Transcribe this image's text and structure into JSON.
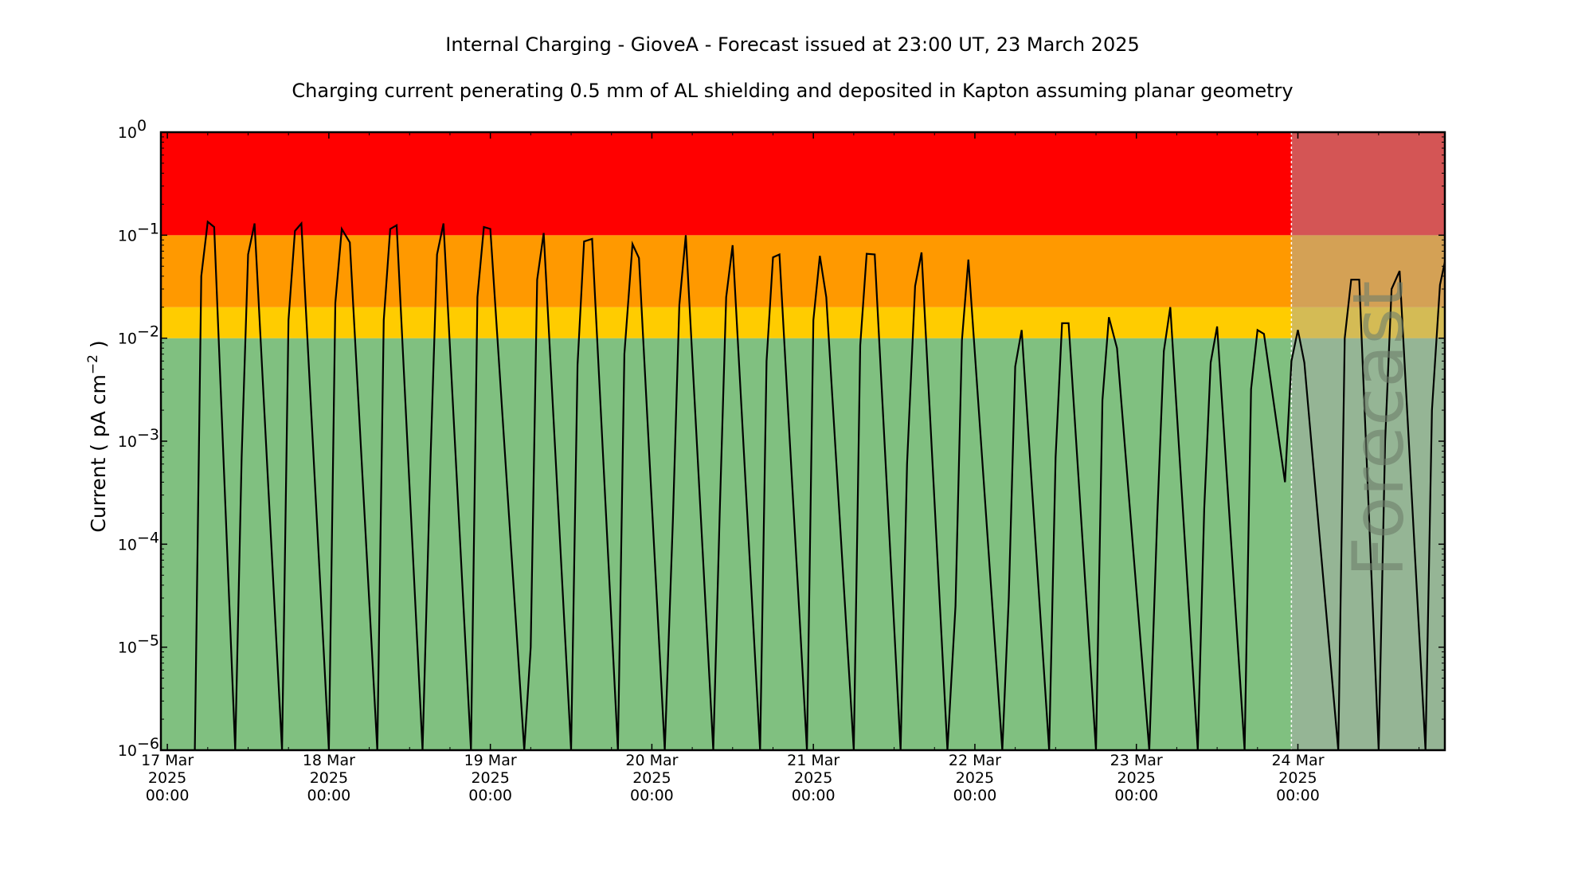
{
  "chart_data": {
    "type": "line",
    "title": "Internal Charging - GioveA - Forecast issued at 23:00 UT, 23 March 2025",
    "subtitle": "Charging current penerating 0.5 mm of AL shielding and deposited in Kapton assuming planar geometry",
    "ylabel": "Current ( pA cm",
    "ylabel_sup": "−2",
    "ylabel_end": " )",
    "yscale": "log",
    "ylim_exp": [
      -6,
      0
    ],
    "ytick_labels": [
      {
        "base": "10",
        "exp": "−6"
      },
      {
        "base": "10",
        "exp": "−5"
      },
      {
        "base": "10",
        "exp": "−4"
      },
      {
        "base": "10",
        "exp": "−3"
      },
      {
        "base": "10",
        "exp": "−2"
      },
      {
        "base": "10",
        "exp": "−1"
      },
      {
        "base": "10",
        "exp": "0"
      }
    ],
    "xlim_days": [
      16.96,
      24.91
    ],
    "xtick_labels": [
      {
        "day": 17,
        "lines": [
          "17 Mar",
          "2025",
          "00:00"
        ]
      },
      {
        "day": 18,
        "lines": [
          "18 Mar",
          "2025",
          "00:00"
        ]
      },
      {
        "day": 19,
        "lines": [
          "19 Mar",
          "2025",
          "00:00"
        ]
      },
      {
        "day": 20,
        "lines": [
          "20 Mar",
          "2025",
          "00:00"
        ]
      },
      {
        "day": 21,
        "lines": [
          "21 Mar",
          "2025",
          "00:00"
        ]
      },
      {
        "day": 22,
        "lines": [
          "22 Mar",
          "2025",
          "00:00"
        ]
      },
      {
        "day": 23,
        "lines": [
          "23 Mar",
          "2025",
          "00:00"
        ]
      },
      {
        "day": 24,
        "lines": [
          "24 Mar",
          "2025",
          "00:00"
        ]
      }
    ],
    "bands": [
      {
        "from_exp": -6,
        "to_exp": -2,
        "color": "#80c080"
      },
      {
        "from_exp": -2,
        "to_exp": -1.699,
        "color": "#ffcc00"
      },
      {
        "from_exp": -1.699,
        "to_exp": -1,
        "color": "#ff9900"
      },
      {
        "from_exp": -1,
        "to_exp": 0,
        "color": "#ff0000"
      }
    ],
    "forecast_start_day": 23.96,
    "forecast_overlay_color": "#a9a9a9",
    "forecast_label": "Forecast",
    "line_color": "#000000",
    "series": [
      {
        "name": "",
        "x": [
          17.17,
          17.21,
          17.25,
          17.29,
          17.42,
          17.46,
          17.5,
          17.54,
          17.71,
          17.75,
          17.79,
          17.83,
          18.0,
          18.04,
          18.08,
          18.13,
          18.3,
          18.34,
          18.38,
          18.42,
          18.58,
          18.63,
          18.67,
          18.71,
          18.88,
          18.92,
          18.96,
          19.0,
          19.21,
          19.25,
          19.29,
          19.33,
          19.5,
          19.54,
          19.58,
          19.63,
          19.79,
          19.83,
          19.88,
          19.92,
          20.08,
          20.13,
          20.17,
          20.21,
          20.38,
          20.42,
          20.46,
          20.5,
          20.67,
          20.71,
          20.75,
          20.79,
          20.96,
          21.0,
          21.04,
          21.08,
          21.25,
          21.29,
          21.33,
          21.38,
          21.54,
          21.58,
          21.63,
          21.67,
          21.83,
          21.88,
          21.92,
          21.96,
          22.17,
          22.21,
          22.25,
          22.29,
          22.46,
          22.5,
          22.54,
          22.58,
          22.75,
          22.79,
          22.83,
          22.88,
          23.08,
          23.13,
          23.17,
          23.21,
          23.38,
          23.42,
          23.46,
          23.5,
          23.67,
          23.71,
          23.75,
          23.79,
          23.92,
          23.96,
          24.0,
          24.04,
          24.25,
          24.29,
          24.33,
          24.38,
          24.5,
          24.54,
          24.58,
          24.63,
          24.79,
          24.83,
          24.88,
          24.91
        ],
        "y": [
          1e-06,
          0.04,
          0.135,
          0.12,
          1e-06,
          0.0007,
          0.065,
          0.13,
          1e-06,
          0.015,
          0.11,
          0.13,
          1e-06,
          0.022,
          0.115,
          0.085,
          1e-06,
          0.015,
          0.115,
          0.125,
          1e-06,
          0.0007,
          0.065,
          0.13,
          1e-06,
          0.025,
          0.12,
          0.115,
          1e-06,
          1e-05,
          0.037,
          0.105,
          1e-06,
          0.0055,
          0.087,
          0.092,
          1e-06,
          0.007,
          0.082,
          0.06,
          1e-06,
          0.00017,
          0.021,
          0.1,
          1e-06,
          0.0002,
          0.025,
          0.08,
          1e-06,
          0.006,
          0.061,
          0.065,
          1e-06,
          0.015,
          0.063,
          0.025,
          1e-06,
          0.0085,
          0.066,
          0.065,
          1e-06,
          0.0006,
          0.032,
          0.068,
          1e-06,
          2.5e-05,
          0.0095,
          0.058,
          1e-06,
          3e-05,
          0.0053,
          0.012,
          1e-06,
          0.0007,
          0.014,
          0.014,
          1e-06,
          0.0025,
          0.016,
          0.008,
          1e-06,
          0.0002,
          0.0075,
          0.02,
          1e-06,
          0.00022,
          0.0058,
          0.013,
          1e-06,
          0.0032,
          0.012,
          0.011,
          0.0004,
          0.006,
          0.012,
          0.0058,
          1e-06,
          0.01,
          0.037,
          0.037,
          1e-06,
          0.001,
          0.03,
          0.045,
          1e-06,
          0.002,
          0.033,
          0.055
        ]
      }
    ],
    "grid": false,
    "legend": "none"
  }
}
